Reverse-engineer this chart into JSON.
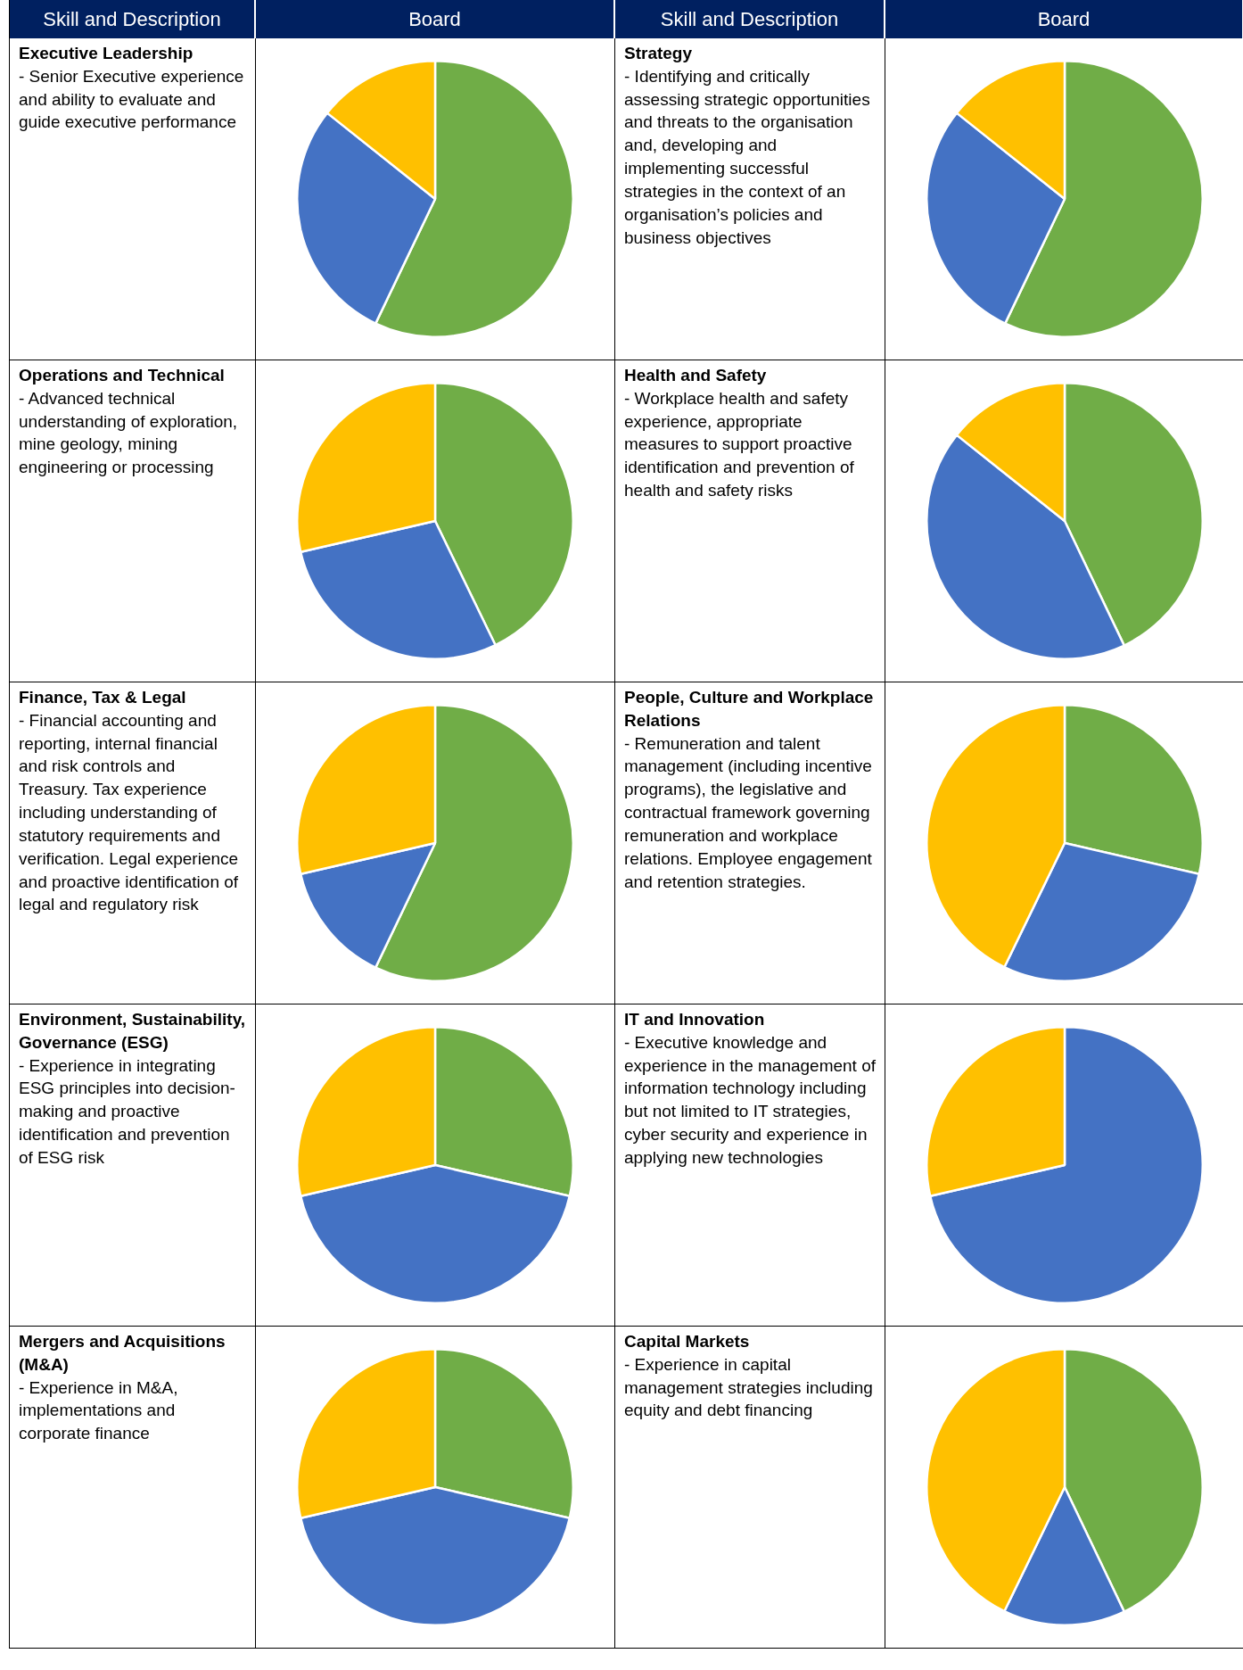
{
  "chart_data": [
    {
      "type": "other",
      "annotations": [
        "Skill and Description",
        "Board",
        "Skill and Description",
        "Board"
      ]
    },
    {
      "type": "pie",
      "title": "Executive Leadership",
      "subtitle": "- Senior Executive experience and ability to evaluate and guide executive performance",
      "categories": [
        null,
        null,
        null
      ],
      "values": [
        57.1,
        28.6,
        14.3
      ],
      "colors": [
        "#70ad47",
        "#4472c4",
        "#ffc000"
      ]
    },
    {
      "type": "pie",
      "title": "Strategy",
      "subtitle": "- Identifying and critically assessing strategic opportunities and threats to the organisation and, developing and implementing successful strategies in the context of an organisation’s policies and business objectives",
      "categories": [
        null,
        null,
        null
      ],
      "values": [
        57.1,
        28.6,
        14.3
      ],
      "colors": [
        "#70ad47",
        "#4472c4",
        "#ffc000"
      ]
    },
    {
      "type": "pie",
      "title": "Operations and Technical",
      "subtitle": "- Advanced technical understanding of exploration, mine geology, mining engineering or processing",
      "categories": [
        null,
        null,
        null
      ],
      "values": [
        42.8,
        28.6,
        28.6
      ],
      "colors": [
        "#70ad47",
        "#4472c4",
        "#ffc000"
      ]
    },
    {
      "type": "pie",
      "title": "Health and Safety",
      "subtitle": "- Workplace health and safety experience, appropriate measures to support proactive identification and prevention of health and safety risks",
      "categories": [
        null,
        null,
        null
      ],
      "values": [
        42.9,
        42.8,
        14.3
      ],
      "colors": [
        "#70ad47",
        "#4472c4",
        "#ffc000"
      ]
    },
    {
      "type": "pie",
      "title": "Finance, Tax & Legal",
      "subtitle": "- Financial accounting and reporting, internal financial and risk controls and Treasury. Tax experience including understanding of statutory requirements and verification. Legal experience and proactive identification of legal and regulatory risk",
      "categories": [
        null,
        null,
        null
      ],
      "values": [
        57.1,
        14.3,
        28.6
      ],
      "colors": [
        "#70ad47",
        "#4472c4",
        "#ffc000"
      ]
    },
    {
      "type": "pie",
      "title": "People, Culture and Workplace Relations",
      "subtitle": "- Remuneration and talent management (including incentive programs), the legislative and contractual framework governing remuneration and workplace relations. Employee engagement and retention strategies.",
      "categories": [
        null,
        null,
        null
      ],
      "values": [
        28.6,
        28.6,
        42.8
      ],
      "colors": [
        "#70ad47",
        "#4472c4",
        "#ffc000"
      ]
    },
    {
      "type": "pie",
      "title": "Environment, Sustainability, Governance (ESG)",
      "subtitle": "- Experience in integrating ESG principles into decision-making and proactive identification and prevention of ESG risk",
      "categories": [
        null,
        null,
        null
      ],
      "values": [
        28.6,
        42.8,
        28.6
      ],
      "colors": [
        "#70ad47",
        "#4472c4",
        "#ffc000"
      ]
    },
    {
      "type": "pie",
      "title": "IT and Innovation",
      "subtitle": "- Executive knowledge and experience in the management of information technology including but not limited to IT strategies, cyber security and experience in applying new technologies",
      "categories": [
        null,
        null
      ],
      "values": [
        71.4,
        28.6
      ],
      "colors": [
        "#4472c4",
        "#ffc000"
      ]
    },
    {
      "type": "pie",
      "title": "Mergers and Acquisitions (M&A)",
      "subtitle": "- Experience in M&A, implementations and corporate finance",
      "categories": [
        null,
        null,
        null
      ],
      "values": [
        28.6,
        42.8,
        28.6
      ],
      "colors": [
        "#70ad47",
        "#4472c4",
        "#ffc000"
      ]
    },
    {
      "type": "pie",
      "title": "Capital Markets",
      "subtitle": "- Experience in capital management strategies including equity and debt financing",
      "categories": [
        null,
        null,
        null
      ],
      "values": [
        42.9,
        14.3,
        42.8
      ],
      "colors": [
        "#70ad47",
        "#4472c4",
        "#ffc000"
      ]
    }
  ]
}
